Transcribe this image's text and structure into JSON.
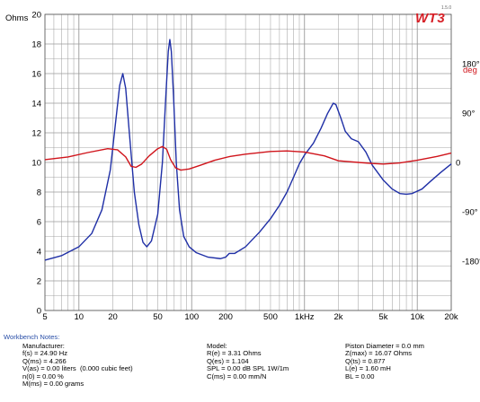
{
  "logo": {
    "text": "WT3",
    "version": "1.5.0"
  },
  "chart_data": {
    "type": "line",
    "x_scale": "log",
    "xlim": [
      5,
      20000
    ],
    "x_ticks": [
      {
        "v": 5,
        "label": "5"
      },
      {
        "v": 10,
        "label": "10"
      },
      {
        "v": 20,
        "label": "20"
      },
      {
        "v": 50,
        "label": "50"
      },
      {
        "v": 100,
        "label": "100"
      },
      {
        "v": 200,
        "label": "200"
      },
      {
        "v": 500,
        "label": "500"
      },
      {
        "v": 1000,
        "label": "1kHz"
      },
      {
        "v": 2000,
        "label": "2k"
      },
      {
        "v": 5000,
        "label": "5k"
      },
      {
        "v": 10000,
        "label": "10k"
      },
      {
        "v": 20000,
        "label": "20k"
      }
    ],
    "y_left": {
      "label": "Ohms",
      "lim": [
        0,
        20
      ],
      "ticks": [
        "0",
        "2",
        "4",
        "6",
        "8",
        "10",
        "12",
        "14",
        "16",
        "18",
        "20"
      ]
    },
    "y_right": {
      "label": "deg",
      "lim": [
        -270,
        270
      ],
      "ticks": [
        {
          "v": 180,
          "label": "180°"
        },
        {
          "v": 90,
          "label": "90°"
        },
        {
          "v": 0,
          "label": "0"
        },
        {
          "v": -90,
          "label": "-90°"
        },
        {
          "v": -180,
          "label": "-180°"
        }
      ]
    },
    "grid": true,
    "series": [
      {
        "axis": "left",
        "color": "#1f2fa6",
        "points": [
          [
            5,
            3.4
          ],
          [
            7,
            3.7
          ],
          [
            10,
            4.3
          ],
          [
            13,
            5.2
          ],
          [
            16,
            6.8
          ],
          [
            19,
            9.5
          ],
          [
            21,
            12.5
          ],
          [
            23,
            15.2
          ],
          [
            24.5,
            16.0
          ],
          [
            26,
            15.0
          ],
          [
            28,
            12.0
          ],
          [
            31,
            8.0
          ],
          [
            34,
            5.8
          ],
          [
            37,
            4.6
          ],
          [
            40,
            4.3
          ],
          [
            44,
            4.7
          ],
          [
            50,
            6.5
          ],
          [
            55,
            10.0
          ],
          [
            59,
            14.5
          ],
          [
            62,
            17.5
          ],
          [
            64,
            18.3
          ],
          [
            66,
            17.5
          ],
          [
            69,
            14.5
          ],
          [
            73,
            10.0
          ],
          [
            78,
            6.8
          ],
          [
            85,
            5.0
          ],
          [
            95,
            4.3
          ],
          [
            110,
            3.9
          ],
          [
            140,
            3.6
          ],
          [
            180,
            3.5
          ],
          [
            200,
            3.6
          ],
          [
            215,
            3.85
          ],
          [
            240,
            3.85
          ],
          [
            300,
            4.3
          ],
          [
            400,
            5.3
          ],
          [
            500,
            6.2
          ],
          [
            600,
            7.1
          ],
          [
            700,
            8.0
          ],
          [
            800,
            9.0
          ],
          [
            900,
            9.9
          ],
          [
            1000,
            10.5
          ],
          [
            1200,
            11.3
          ],
          [
            1400,
            12.3
          ],
          [
            1600,
            13.3
          ],
          [
            1800,
            14.0
          ],
          [
            1900,
            13.9
          ],
          [
            2100,
            13.0
          ],
          [
            2300,
            12.1
          ],
          [
            2600,
            11.6
          ],
          [
            3000,
            11.4
          ],
          [
            3500,
            10.7
          ],
          [
            4000,
            9.8
          ],
          [
            5000,
            8.8
          ],
          [
            6000,
            8.2
          ],
          [
            7000,
            7.9
          ],
          [
            8000,
            7.85
          ],
          [
            9000,
            7.9
          ],
          [
            11000,
            8.2
          ],
          [
            13000,
            8.7
          ],
          [
            16000,
            9.3
          ],
          [
            20000,
            9.9
          ]
        ]
      },
      {
        "axis": "right",
        "color": "#d0141b",
        "points": [
          [
            5,
            5
          ],
          [
            8,
            10
          ],
          [
            12,
            18
          ],
          [
            18,
            25
          ],
          [
            22,
            23
          ],
          [
            26,
            10
          ],
          [
            29,
            -7
          ],
          [
            32,
            -9
          ],
          [
            36,
            -3
          ],
          [
            42,
            12
          ],
          [
            50,
            25
          ],
          [
            55,
            29
          ],
          [
            60,
            24
          ],
          [
            65,
            5
          ],
          [
            72,
            -10
          ],
          [
            80,
            -14
          ],
          [
            95,
            -12
          ],
          [
            120,
            -5
          ],
          [
            160,
            4
          ],
          [
            220,
            11
          ],
          [
            300,
            15
          ],
          [
            500,
            20
          ],
          [
            700,
            21
          ],
          [
            1000,
            19
          ],
          [
            1500,
            12
          ],
          [
            2000,
            3
          ],
          [
            3000,
            0
          ],
          [
            4000,
            -2
          ],
          [
            5000,
            -3
          ],
          [
            7000,
            -1
          ],
          [
            10000,
            4
          ],
          [
            15000,
            11
          ],
          [
            20000,
            17
          ]
        ]
      }
    ]
  },
  "notes": {
    "title": "Workbench Notes:",
    "col1": [
      "Manufacturer:",
      "f(s) = 24.90 Hz",
      "Q(ms) = 4.266",
      "V(as) = 0.00 liters  (0.000 cubic feet)",
      "n(0) = 0.00 %",
      "M(ms) = 0.00 grams"
    ],
    "col2": [
      "Model:",
      "R(e) = 3.31 Ohms",
      "Q(es) = 1.104",
      "",
      "SPL = 0.00 dB SPL 1W/1m",
      "C(ms) = 0.00 mm/N"
    ],
    "col3": [
      "Piston Diameter = 0.0 mm",
      "Z(max) = 16.07 Ohms",
      "Q(ts) = 0.877",
      "L(e) = 1.60 mH",
      "",
      "BL = 0.00"
    ]
  }
}
